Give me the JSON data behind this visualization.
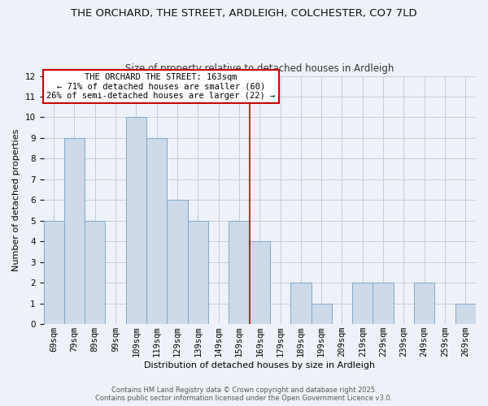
{
  "title": "THE ORCHARD, THE STREET, ARDLEIGH, COLCHESTER, CO7 7LD",
  "subtitle": "Size of property relative to detached houses in Ardleigh",
  "xlabel": "Distribution of detached houses by size in Ardleigh",
  "ylabel": "Number of detached properties",
  "bar_labels": [
    "69sqm",
    "79sqm",
    "89sqm",
    "99sqm",
    "109sqm",
    "119sqm",
    "129sqm",
    "139sqm",
    "149sqm",
    "159sqm",
    "169sqm",
    "179sqm",
    "189sqm",
    "199sqm",
    "209sqm",
    "219sqm",
    "229sqm",
    "239sqm",
    "249sqm",
    "259sqm",
    "269sqm"
  ],
  "bar_values": [
    5,
    9,
    5,
    0,
    10,
    9,
    6,
    5,
    0,
    5,
    4,
    0,
    2,
    1,
    0,
    2,
    2,
    0,
    2,
    0,
    1
  ],
  "bar_color": "#cddaea",
  "bar_edge_color": "#7aa8cc",
  "ylim": [
    0,
    12
  ],
  "yticks": [
    0,
    1,
    2,
    3,
    4,
    5,
    6,
    7,
    8,
    9,
    10,
    11,
    12
  ],
  "vline_x": 9.5,
  "vline_color": "#cc0000",
  "annotation_title": "THE ORCHARD THE STREET: 163sqm",
  "annotation_line1": "← 71% of detached houses are smaller (60)",
  "annotation_line2": "26% of semi-detached houses are larger (22) →",
  "annotation_box_color": "#ffffff",
  "annotation_box_edge": "#cc0000",
  "grid_color": "#c0ccd8",
  "background_color": "#eef2f8",
  "footer1": "Contains HM Land Registry data © Crown copyright and database right 2025.",
  "footer2": "Contains public sector information licensed under the Open Government Licence v3.0.",
  "title_fontsize": 9.5,
  "subtitle_fontsize": 8.5,
  "axis_label_fontsize": 8.0,
  "tick_fontsize": 7.5,
  "ann_fontsize": 7.5,
  "footer_fontsize": 6.0
}
